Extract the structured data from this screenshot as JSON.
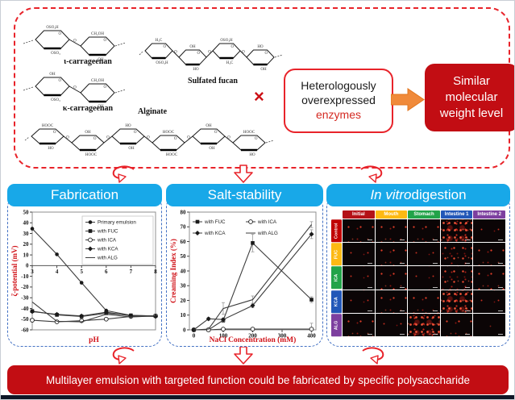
{
  "colors": {
    "panel_header_cyan": "#18a8e8",
    "solid_red": "#c20d13",
    "arrow_orange": "#f08a3a",
    "dashed_red_border": "#e8232a",
    "dashed_blue_border": "#4472c4",
    "line_series": "#3d3d3d"
  },
  "top_box": {
    "structures": [
      {
        "id": "iota",
        "label": "ι-carrageenan",
        "substituents": [
          "OSO₃H",
          "CH₂OH",
          "OSO₃",
          "OH",
          "O"
        ]
      },
      {
        "id": "kappa",
        "label": "κ-carrageenan",
        "substituents": [
          "OH",
          "CH₂OH",
          "OSO₃",
          "OH",
          "O"
        ]
      },
      {
        "id": "fucan",
        "label": "Sulfated fucan",
        "substituents": [
          "H₃C",
          "OH",
          "OSO₃H",
          "HO",
          "O"
        ]
      },
      {
        "id": "alginate",
        "label": "Alginate",
        "substituents": [
          "HOOC",
          "OH",
          "HO",
          "HOOC",
          "OH",
          "O"
        ]
      }
    ],
    "cross": "×",
    "enzyme_box": {
      "line1": "Heterologously",
      "line2": "overexpressed",
      "line3": "enzymes"
    },
    "result_box": {
      "line1": "Similar",
      "line2": "molecular",
      "line3": "weight level"
    }
  },
  "panels": [
    {
      "title": "Fabrication"
    },
    {
      "title": "Salt-stability"
    },
    {
      "title_italic": "In vitro",
      "title_rest": " digestion"
    }
  ],
  "banner": "Multilayer emulsion with targeted function could be fabricated by specific polysaccharide",
  "chart_data": [
    {
      "type": "line",
      "title": "Fabrication",
      "xlabel": "pH",
      "ylabel": "ζ-potential (mV)",
      "x": [
        3,
        4,
        5,
        6,
        7,
        8
      ],
      "xticks": [
        3,
        4,
        5,
        6,
        7,
        8
      ],
      "xlim": [
        3,
        8
      ],
      "ylim": [
        -60,
        50
      ],
      "ytick": 10,
      "grid": false,
      "legend_position": "top-right-box",
      "series": [
        {
          "name": "Primary emulsion",
          "marker": "circle-filled",
          "values": [
            34.5,
            10.5,
            -16,
            -42,
            -46.5,
            -47
          ]
        },
        {
          "name": "with FUC",
          "marker": "square-filled",
          "values": [
            -42.5,
            -46,
            -47.5,
            -44.5,
            -46.5,
            -47
          ]
        },
        {
          "name": "with ICA",
          "marker": "circle-open",
          "values": [
            -51,
            -52.5,
            -51.5,
            -50,
            -47.5,
            -47
          ]
        },
        {
          "name": "with KCA",
          "marker": "diamond-filled",
          "values": [
            -43,
            -45.5,
            -47,
            -43.5,
            -47,
            -47.5
          ]
        },
        {
          "name": "with ALG",
          "marker": "none",
          "values": [
            -34,
            -52,
            -52.5,
            -45.5,
            -48,
            -47
          ]
        }
      ]
    },
    {
      "type": "line",
      "title": "Salt-stability",
      "xlabel": "NaCl Concentration (mM)",
      "ylabel": "Creaming Index (%)",
      "x": [
        0,
        50,
        100,
        200,
        400
      ],
      "xticks": [
        0,
        100,
        200,
        300,
        400
      ],
      "xlim": [
        -15,
        415
      ],
      "ylim": [
        0,
        80
      ],
      "ytick": 10,
      "grid": false,
      "legend_position": "top-inside-2col",
      "series": [
        {
          "name": "with FUC",
          "marker": "square-filled",
          "values": [
            0,
            0,
            6.5,
            59,
            20.5
          ],
          "yerr": [
            0,
            0,
            1.5,
            6,
            2
          ]
        },
        {
          "name": "with ICA",
          "marker": "circle-open",
          "values": [
            0,
            0,
            0.5,
            0.5,
            0.5
          ],
          "yerr": [
            0,
            0,
            1,
            1,
            4
          ]
        },
        {
          "name": "with KCA",
          "marker": "diamond-filled",
          "values": [
            0,
            7.5,
            7,
            16.5,
            65
          ],
          "yerr": [
            0,
            1,
            1,
            1.5,
            3
          ]
        },
        {
          "name": "with ALG",
          "marker": "none",
          "values": [
            0,
            0.5,
            14.5,
            20.5,
            71.5
          ],
          "yerr": [
            0,
            0,
            4,
            2.5,
            2
          ]
        }
      ]
    },
    {
      "type": "heatmap",
      "title": "In vitro digestion",
      "columns": [
        "Initial",
        "Mouth",
        "Stomach",
        "Intestine 1",
        "Intestine 2"
      ],
      "column_colors": [
        "#b41217",
        "#fdb913",
        "#22a349",
        "#2257b8",
        "#7d3f9f"
      ],
      "rows": [
        "Control",
        "FUC",
        "ICA",
        "KCA",
        "ALG"
      ],
      "row_colors": [
        "#c00000",
        "#fdb913",
        "#22a349",
        "#2257b8",
        "#7d3f9f"
      ],
      "values": [
        [
          2,
          2,
          2,
          4,
          1
        ],
        [
          1,
          2,
          1,
          3,
          2
        ],
        [
          1,
          2,
          1,
          3,
          2
        ],
        [
          1,
          2,
          2,
          4,
          1
        ],
        [
          2,
          1,
          4,
          2,
          0
        ]
      ],
      "value_meaning": "relative red fluorescence density of micrographs, 0 (dark) - 4 (dense)"
    }
  ]
}
